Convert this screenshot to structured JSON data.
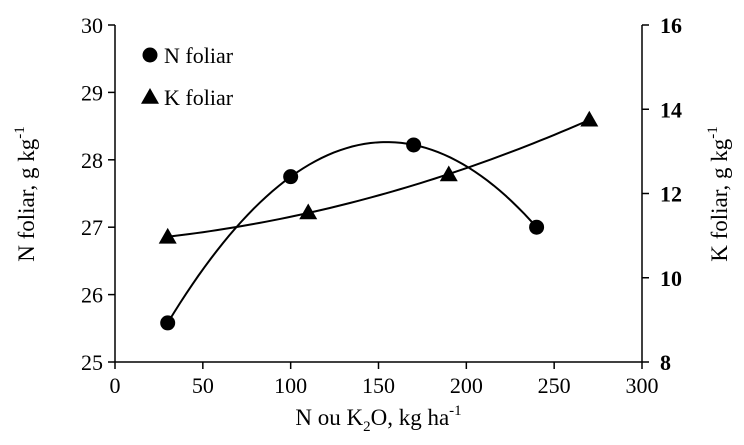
{
  "chart_data": {
    "type": "scatter",
    "x_axis": {
      "min": 0,
      "max": 300,
      "ticks": [
        "0",
        "50",
        "100",
        "150",
        "200",
        "250",
        "300"
      ],
      "label_parts": [
        "N ou K",
        "2",
        "O, kg ha",
        "-1"
      ]
    },
    "y_axis_left": {
      "min": 25,
      "max": 30,
      "ticks": [
        "25",
        "26",
        "27",
        "28",
        "29",
        "30"
      ],
      "label_parts": [
        "N foliar, g kg",
        "-1"
      ]
    },
    "y_axis_right": {
      "min": 8,
      "max": 16,
      "ticks": [
        "8",
        "10",
        "12",
        "14",
        "16"
      ],
      "label_parts": [
        "K foliar, g kg",
        "-1"
      ]
    },
    "grid": false,
    "legend_position": "top-left",
    "series": [
      {
        "name": "N foliar",
        "marker": "circle",
        "axis": "left",
        "x": [
          30,
          100,
          170,
          240
        ],
        "y": [
          25.58,
          27.75,
          28.22,
          27.0
        ],
        "fit": "quadratic"
      },
      {
        "name": "K foliar",
        "marker": "triangle",
        "axis": "right",
        "x": [
          30,
          110,
          190,
          270
        ],
        "y": [
          10.97,
          11.55,
          12.45,
          13.75
        ],
        "fit": "quadratic"
      }
    ],
    "colors": {
      "ink": "#000000"
    }
  }
}
